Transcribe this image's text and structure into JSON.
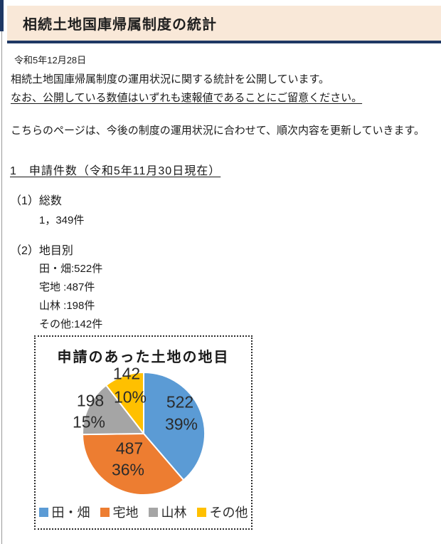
{
  "page": {
    "title": "相続土地国庫帰属制度の統計",
    "date": "令和5年12月28日",
    "intro_line1": "相続土地国庫帰属制度の運用状況に関する統計を公開しています。",
    "intro_line2": "なお、公開している数値はいずれも速報値であることにご留意ください。",
    "note": "こちらのページは、今後の制度の運用状況に合わせて、順次内容を更新していきます。",
    "section1": {
      "heading": "1　申請件数（令和5年11月30日現在）",
      "sub1_label": "（1）総数",
      "sub1_value": "1，349件",
      "sub2_label": "（2）地目別",
      "sub2_items": [
        "田・畑:522件",
        "宅地 :487件",
        "山林 :198件",
        "その他:142件"
      ]
    }
  },
  "chart_data": {
    "type": "pie",
    "title": "申請のあった土地の地目",
    "categories": [
      "田・畑",
      "宅地",
      "山林",
      "その他"
    ],
    "values": [
      522,
      487,
      198,
      142
    ],
    "percent_labels": [
      "39%",
      "36%",
      "15%",
      "10%"
    ],
    "colors": [
      "#5B9BD5",
      "#ED7D31",
      "#A5A5A5",
      "#FFC000"
    ],
    "start_angle_deg": 0,
    "direction": "clockwise",
    "legend_position": "bottom",
    "slice_border_color": "#FFFFFF"
  },
  "theme": {
    "header_bg": "#f9e8d8",
    "accent_navy": "#1f3864"
  }
}
